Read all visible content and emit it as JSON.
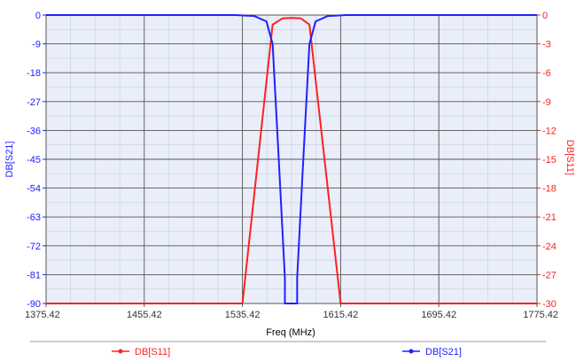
{
  "chart_data": {
    "type": "line",
    "xlabel": "Freq (MHz)",
    "ylabel_left": "DB[S21]",
    "ylabel_right": "DB[S11]",
    "xlim": [
      1375.42,
      1775.42
    ],
    "ylim_left": [
      -90,
      0
    ],
    "ylim_right": [
      -30,
      0
    ],
    "x_ticks": [
      "1375.42",
      "1455.42",
      "1535.42",
      "1615.42",
      "1695.42",
      "1775.42"
    ],
    "y_left_ticks": [
      "0",
      "-9",
      "-18",
      "-27",
      "-36",
      "-45",
      "-54",
      "-63",
      "-72",
      "-81",
      "-90"
    ],
    "y_right_ticks": [
      "0",
      "-3",
      "-6",
      "-9",
      "-12",
      "-15",
      "-18",
      "-21",
      "-24",
      "-27",
      "-30"
    ],
    "grid": true,
    "legend_position": "bottom",
    "series": [
      {
        "name": "DB[S11]",
        "axis": "right",
        "color": "#ff2020",
        "x": [
          1375.42,
          1535.42,
          1560.0,
          1568.0,
          1575.42,
          1583.0,
          1590.0,
          1615.42,
          1775.42
        ],
        "y": [
          -30,
          -30,
          -1.0,
          -0.35,
          -0.3,
          -0.35,
          -1.0,
          -30,
          -30
        ]
      },
      {
        "name": "DB[S21]",
        "axis": "left",
        "color": "#2020ff",
        "x": [
          1375.42,
          1530.0,
          1545.0,
          1555.0,
          1560.0,
          1565.0,
          1570.0,
          1570.0,
          1580.0,
          1580.0,
          1585.0,
          1590.0,
          1595.0,
          1605.0,
          1620.0,
          1775.42
        ],
        "y": [
          0,
          0,
          -0.3,
          -2,
          -9,
          -45,
          -82,
          -90,
          -90,
          -82,
          -45,
          -9,
          -2,
          -0.3,
          0,
          0
        ]
      }
    ]
  }
}
